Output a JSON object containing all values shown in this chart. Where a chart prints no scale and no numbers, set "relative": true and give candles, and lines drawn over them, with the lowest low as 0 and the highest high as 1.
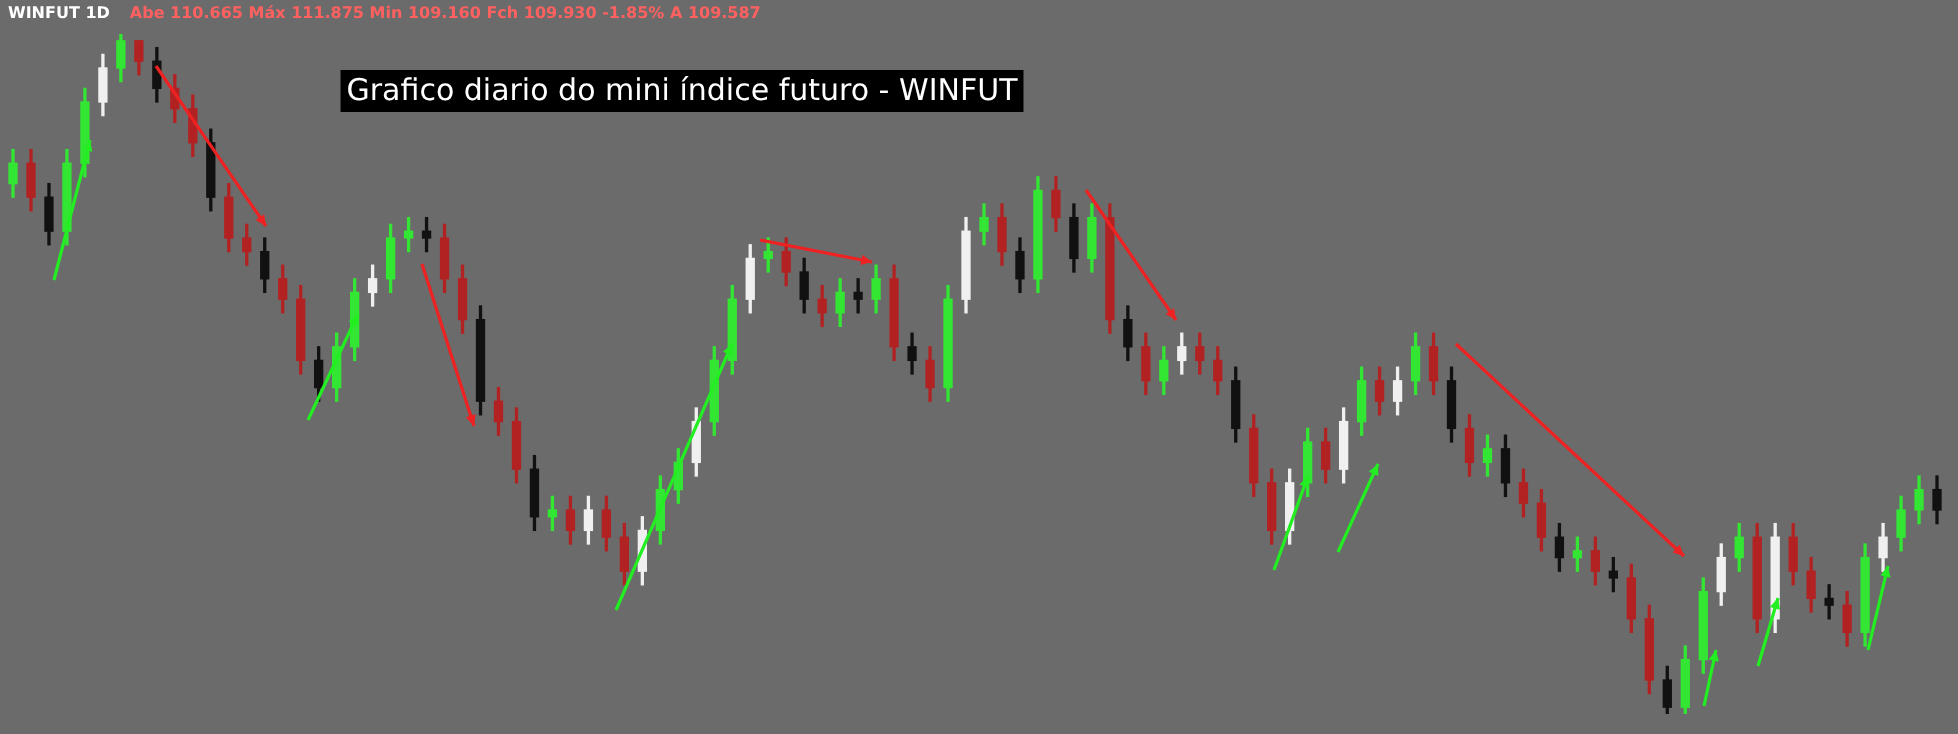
{
  "chart_data": {
    "type": "candlestick",
    "title": "Grafico diario do mini índice futuro - WINFUT",
    "relative": true,
    "annotations": [
      "WINFUT 1D",
      "Abe 110.665 Máx 111.875 Min 109.160 Fch 109.930 -1.85% A 109.587"
    ],
    "categories": [
      null,
      null,
      null,
      null,
      null,
      null,
      null,
      null,
      null,
      null,
      null,
      null,
      null,
      null,
      null,
      null,
      null,
      null,
      null,
      null,
      null,
      null,
      null,
      null,
      null,
      null,
      null,
      null,
      null,
      null,
      null,
      null,
      null,
      null,
      null,
      null,
      null,
      null,
      null,
      null,
      null,
      null,
      null,
      null,
      null,
      null,
      null,
      null,
      null,
      null,
      null,
      null,
      null,
      null,
      null,
      null,
      null,
      null,
      null,
      null,
      null,
      null,
      null,
      null,
      null,
      null,
      null,
      null,
      null,
      null,
      null,
      null,
      null,
      null,
      null,
      null,
      null,
      null,
      null,
      null,
      null,
      null,
      null,
      null,
      null,
      null,
      null,
      null,
      null,
      null,
      null,
      null,
      null,
      null,
      null,
      null,
      null,
      null,
      null,
      null,
      null,
      null,
      null,
      null,
      null,
      null,
      null,
      null
    ],
    "ohlc": [
      [
        0.78,
        0.83,
        0.76,
        0.81
      ],
      [
        0.81,
        0.83,
        0.74,
        0.76
      ],
      [
        0.76,
        0.78,
        0.69,
        0.71
      ],
      [
        0.71,
        0.83,
        0.69,
        0.81
      ],
      [
        0.81,
        0.92,
        0.79,
        0.9
      ],
      [
        0.9,
        0.97,
        0.88,
        0.95
      ],
      [
        0.95,
        1.0,
        0.93,
        0.99
      ],
      [
        0.99,
        0.99,
        0.94,
        0.96
      ],
      [
        0.96,
        0.98,
        0.9,
        0.92
      ],
      [
        0.92,
        0.94,
        0.87,
        0.89
      ],
      [
        0.89,
        0.91,
        0.82,
        0.84
      ],
      [
        0.84,
        0.86,
        0.74,
        0.76
      ],
      [
        0.76,
        0.78,
        0.68,
        0.7
      ],
      [
        0.7,
        0.72,
        0.66,
        0.68
      ],
      [
        0.68,
        0.7,
        0.62,
        0.64
      ],
      [
        0.64,
        0.66,
        0.59,
        0.61
      ],
      [
        0.61,
        0.63,
        0.5,
        0.52
      ],
      [
        0.52,
        0.54,
        0.46,
        0.48
      ],
      [
        0.48,
        0.56,
        0.46,
        0.54
      ],
      [
        0.54,
        0.64,
        0.52,
        0.62
      ],
      [
        0.62,
        0.66,
        0.6,
        0.64
      ],
      [
        0.64,
        0.72,
        0.62,
        0.7
      ],
      [
        0.7,
        0.73,
        0.68,
        0.71
      ],
      [
        0.71,
        0.73,
        0.68,
        0.7
      ],
      [
        0.7,
        0.72,
        0.62,
        0.64
      ],
      [
        0.64,
        0.66,
        0.56,
        0.58
      ],
      [
        0.58,
        0.6,
        0.44,
        0.46
      ],
      [
        0.46,
        0.48,
        0.41,
        0.43
      ],
      [
        0.43,
        0.45,
        0.34,
        0.36
      ],
      [
        0.36,
        0.38,
        0.27,
        0.29
      ],
      [
        0.29,
        0.32,
        0.27,
        0.3
      ],
      [
        0.3,
        0.32,
        0.25,
        0.27
      ],
      [
        0.27,
        0.32,
        0.25,
        0.3
      ],
      [
        0.3,
        0.32,
        0.24,
        0.26
      ],
      [
        0.26,
        0.28,
        0.19,
        0.21
      ],
      [
        0.21,
        0.29,
        0.19,
        0.27
      ],
      [
        0.27,
        0.35,
        0.25,
        0.33
      ],
      [
        0.33,
        0.39,
        0.31,
        0.37
      ],
      [
        0.37,
        0.45,
        0.35,
        0.43
      ],
      [
        0.43,
        0.54,
        0.41,
        0.52
      ],
      [
        0.52,
        0.63,
        0.5,
        0.61
      ],
      [
        0.61,
        0.69,
        0.59,
        0.67
      ],
      [
        0.67,
        0.7,
        0.65,
        0.68
      ],
      [
        0.68,
        0.7,
        0.63,
        0.65
      ],
      [
        0.65,
        0.67,
        0.59,
        0.61
      ],
      [
        0.61,
        0.63,
        0.57,
        0.59
      ],
      [
        0.59,
        0.64,
        0.57,
        0.62
      ],
      [
        0.62,
        0.64,
        0.59,
        0.61
      ],
      [
        0.61,
        0.66,
        0.59,
        0.64
      ],
      [
        0.64,
        0.66,
        0.52,
        0.54
      ],
      [
        0.54,
        0.56,
        0.5,
        0.52
      ],
      [
        0.52,
        0.54,
        0.46,
        0.48
      ],
      [
        0.48,
        0.63,
        0.46,
        0.61
      ],
      [
        0.61,
        0.73,
        0.59,
        0.71
      ],
      [
        0.71,
        0.75,
        0.69,
        0.73
      ],
      [
        0.73,
        0.75,
        0.66,
        0.68
      ],
      [
        0.68,
        0.7,
        0.62,
        0.64
      ],
      [
        0.64,
        0.79,
        0.62,
        0.77
      ],
      [
        0.77,
        0.79,
        0.71,
        0.73
      ],
      [
        0.73,
        0.75,
        0.65,
        0.67
      ],
      [
        0.67,
        0.75,
        0.65,
        0.73
      ],
      [
        0.73,
        0.75,
        0.56,
        0.58
      ],
      [
        0.58,
        0.6,
        0.52,
        0.54
      ],
      [
        0.54,
        0.56,
        0.47,
        0.49
      ],
      [
        0.49,
        0.54,
        0.47,
        0.52
      ],
      [
        0.52,
        0.56,
        0.5,
        0.54
      ],
      [
        0.54,
        0.56,
        0.5,
        0.52
      ],
      [
        0.52,
        0.54,
        0.47,
        0.49
      ],
      [
        0.49,
        0.51,
        0.4,
        0.42
      ],
      [
        0.42,
        0.44,
        0.32,
        0.34
      ],
      [
        0.34,
        0.36,
        0.25,
        0.27
      ],
      [
        0.27,
        0.36,
        0.25,
        0.34
      ],
      [
        0.34,
        0.42,
        0.32,
        0.4
      ],
      [
        0.4,
        0.42,
        0.34,
        0.36
      ],
      [
        0.36,
        0.45,
        0.34,
        0.43
      ],
      [
        0.43,
        0.51,
        0.41,
        0.49
      ],
      [
        0.49,
        0.51,
        0.44,
        0.46
      ],
      [
        0.46,
        0.51,
        0.44,
        0.49
      ],
      [
        0.49,
        0.56,
        0.47,
        0.54
      ],
      [
        0.54,
        0.56,
        0.47,
        0.49
      ],
      [
        0.49,
        0.51,
        0.4,
        0.42
      ],
      [
        0.42,
        0.44,
        0.35,
        0.37
      ],
      [
        0.37,
        0.41,
        0.35,
        0.39
      ],
      [
        0.39,
        0.41,
        0.32,
        0.34
      ],
      [
        0.34,
        0.36,
        0.29,
        0.31
      ],
      [
        0.31,
        0.33,
        0.24,
        0.26
      ],
      [
        0.26,
        0.28,
        0.21,
        0.23
      ],
      [
        0.23,
        0.26,
        0.21,
        0.24
      ],
      [
        0.24,
        0.26,
        0.19,
        0.21
      ],
      [
        0.21,
        0.23,
        0.18,
        0.2
      ],
      [
        0.2,
        0.22,
        0.12,
        0.14
      ],
      [
        0.14,
        0.16,
        0.03,
        0.05
      ],
      [
        0.05,
        0.07,
        0.0,
        0.01
      ],
      [
        0.01,
        0.1,
        0.0,
        0.08
      ],
      [
        0.08,
        0.2,
        0.06,
        0.18
      ],
      [
        0.18,
        0.25,
        0.16,
        0.23
      ],
      [
        0.23,
        0.28,
        0.21,
        0.26
      ],
      [
        0.26,
        0.28,
        0.12,
        0.14
      ],
      [
        0.14,
        0.28,
        0.12,
        0.26
      ],
      [
        0.26,
        0.28,
        0.19,
        0.21
      ],
      [
        0.21,
        0.23,
        0.15,
        0.17
      ],
      [
        0.17,
        0.19,
        0.14,
        0.16
      ],
      [
        0.16,
        0.18,
        0.1,
        0.12
      ],
      [
        0.12,
        0.25,
        0.1,
        0.23
      ],
      [
        0.23,
        0.28,
        0.21,
        0.26
      ],
      [
        0.26,
        0.32,
        0.24,
        0.3
      ],
      [
        0.3,
        0.35,
        0.28,
        0.33
      ],
      [
        0.33,
        0.35,
        0.28,
        0.3
      ]
    ],
    "colors": [
      "#33e633",
      "#b22222",
      "#111111",
      "#33e633",
      "#33e633",
      "#f0f0f0",
      "#33e633",
      "#b22222",
      "#111111",
      "#b22222",
      "#b22222",
      "#111111",
      "#b22222",
      "#b22222",
      "#111111",
      "#b22222",
      "#b22222",
      "#111111",
      "#33e633",
      "#33e633",
      "#f0f0f0",
      "#33e633",
      "#33e633",
      "#111111",
      "#b22222",
      "#b22222",
      "#111111",
      "#b22222",
      "#b22222",
      "#111111",
      "#33e633",
      "#b22222",
      "#f0f0f0",
      "#b22222",
      "#b22222",
      "#f0f0f0",
      "#33e633",
      "#33e633",
      "#f0f0f0",
      "#33e633",
      "#33e633",
      "#f0f0f0",
      "#33e633",
      "#b22222",
      "#111111",
      "#b22222",
      "#33e633",
      "#111111",
      "#33e633",
      "#b22222",
      "#111111",
      "#b22222",
      "#33e633",
      "#f0f0f0",
      "#33e633",
      "#b22222",
      "#111111",
      "#33e633",
      "#b22222",
      "#111111",
      "#33e633",
      "#b22222",
      "#111111",
      "#b22222",
      "#33e633",
      "#f0f0f0",
      "#b22222",
      "#b22222",
      "#111111",
      "#b22222",
      "#b22222",
      "#f0f0f0",
      "#33e633",
      "#b22222",
      "#f0f0f0",
      "#33e633",
      "#b22222",
      "#f0f0f0",
      "#33e633",
      "#b22222",
      "#111111",
      "#b22222",
      "#33e633",
      "#111111",
      "#b22222",
      "#b22222",
      "#111111",
      "#33e633",
      "#b22222",
      "#111111",
      "#b22222",
      "#b22222",
      "#111111",
      "#33e633",
      "#33e633",
      "#f0f0f0",
      "#33e633",
      "#b22222",
      "#f0f0f0",
      "#b22222",
      "#b22222",
      "#111111",
      "#b22222",
      "#33e633",
      "#f0f0f0",
      "#33e633",
      "#33e633",
      "#111111"
    ]
  }
}
